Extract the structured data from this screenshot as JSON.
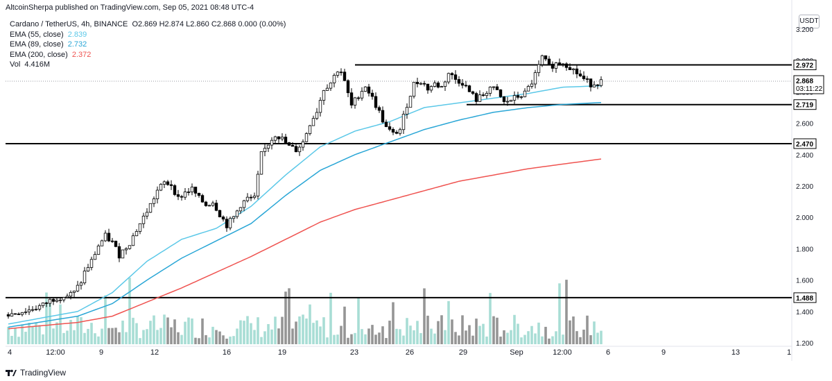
{
  "header": {
    "published_by": "AltcoinSherpa published on TradingView.com, Sep 05, 2021 08:48 UTC-4"
  },
  "legend": {
    "symbol": "Cardano / TetherUS, 4h, BINANCE",
    "ohlc": "O2.869  H2.874  L2.860  C2.868  0.000 (0.00%)",
    "ema55": {
      "label": "EMA (55, close)",
      "value": "2.839",
      "color": "#5bc8e8"
    },
    "ema89": {
      "label": "EMA (89, close)",
      "value": "2.732",
      "color": "#29a6d6"
    },
    "ema200": {
      "label": "EMA (200, close)",
      "value": "2.372",
      "color": "#ef5350"
    },
    "vol": {
      "label": "Vol",
      "value": "4.416M"
    }
  },
  "currency": "USDT",
  "footer": {
    "brand": "TradingView"
  },
  "chart_data": {
    "type": "candlestick",
    "ylim": [
      1.2,
      3.2
    ],
    "y_ticks": [
      "3.200",
      "3.000",
      "2.800",
      "2.600",
      "2.400",
      "2.200",
      "2.000",
      "1.800",
      "1.600",
      "1.400",
      "1.200"
    ],
    "x_ticks": [
      "4",
      "12:00",
      "9",
      "12",
      "16",
      "19",
      "23",
      "26",
      "29",
      "Sep",
      "12:00",
      "6",
      "9",
      "13",
      "1"
    ],
    "horizontal_levels": [
      {
        "price": 2.972,
        "label": "2.972",
        "from": "Aug 23"
      },
      {
        "price": 2.719,
        "label": "2.719",
        "from": "Aug 29"
      },
      {
        "price": 2.47,
        "label": "2.470",
        "from": "Aug 4"
      },
      {
        "price": 1.488,
        "label": "1.488",
        "from": "Aug 4"
      }
    ],
    "last_price": {
      "value": "2.868",
      "countdown": "03:11:22"
    },
    "price_path": [
      [
        0,
        1.38
      ],
      [
        6,
        1.41
      ],
      [
        10,
        1.44
      ],
      [
        12,
        1.47
      ],
      [
        14,
        1.49
      ],
      [
        17,
        1.5
      ],
      [
        19,
        1.52
      ],
      [
        21,
        1.59
      ],
      [
        22,
        1.65
      ],
      [
        24,
        1.72
      ],
      [
        26,
        1.82
      ],
      [
        28,
        1.88
      ],
      [
        30,
        1.84
      ],
      [
        32,
        1.76
      ],
      [
        35,
        1.84
      ],
      [
        37,
        1.92
      ],
      [
        39,
        2.0
      ],
      [
        41,
        2.08
      ],
      [
        43,
        2.17
      ],
      [
        45,
        2.22
      ],
      [
        47,
        2.21
      ],
      [
        49,
        2.12
      ],
      [
        51,
        2.16
      ],
      [
        53,
        2.18
      ],
      [
        55,
        2.12
      ],
      [
        57,
        2.08
      ],
      [
        59,
        2.1
      ],
      [
        61,
        2.02
      ],
      [
        63,
        1.95
      ],
      [
        65,
        2.0
      ],
      [
        67,
        2.08
      ],
      [
        69,
        2.12
      ],
      [
        71,
        2.12
      ],
      [
        73,
        2.4
      ],
      [
        75,
        2.47
      ],
      [
        77,
        2.53
      ],
      [
        79,
        2.5
      ],
      [
        81,
        2.45
      ],
      [
        83,
        2.43
      ],
      [
        85,
        2.48
      ],
      [
        87,
        2.6
      ],
      [
        89,
        2.68
      ],
      [
        91,
        2.82
      ],
      [
        93,
        2.86
      ],
      [
        95,
        2.94
      ],
      [
        96,
        2.93
      ],
      [
        97,
        2.86
      ],
      [
        99,
        2.71
      ],
      [
        101,
        2.78
      ],
      [
        103,
        2.84
      ],
      [
        105,
        2.76
      ],
      [
        107,
        2.67
      ],
      [
        109,
        2.57
      ],
      [
        111,
        2.53
      ],
      [
        113,
        2.56
      ],
      [
        115,
        2.72
      ],
      [
        117,
        2.85
      ],
      [
        119,
        2.87
      ],
      [
        121,
        2.82
      ],
      [
        123,
        2.85
      ],
      [
        125,
        2.83
      ],
      [
        127,
        2.92
      ],
      [
        129,
        2.88
      ],
      [
        131,
        2.86
      ],
      [
        133,
        2.8
      ],
      [
        135,
        2.75
      ],
      [
        137,
        2.78
      ],
      [
        139,
        2.83
      ],
      [
        141,
        2.8
      ],
      [
        143,
        2.73
      ],
      [
        145,
        2.75
      ],
      [
        147,
        2.77
      ],
      [
        149,
        2.79
      ],
      [
        151,
        2.86
      ],
      [
        153,
        2.96
      ],
      [
        154,
        3.02
      ],
      [
        156,
        2.96
      ],
      [
        158,
        2.98
      ],
      [
        160,
        2.99
      ],
      [
        162,
        2.96
      ],
      [
        164,
        2.92
      ],
      [
        166,
        2.88
      ],
      [
        168,
        2.85
      ],
      [
        170,
        2.86
      ],
      [
        171,
        2.868
      ]
    ],
    "ema55": [
      [
        0,
        1.32
      ],
      [
        20,
        1.4
      ],
      [
        30,
        1.52
      ],
      [
        40,
        1.72
      ],
      [
        50,
        1.86
      ],
      [
        60,
        1.93
      ],
      [
        70,
        2.07
      ],
      [
        80,
        2.27
      ],
      [
        90,
        2.45
      ],
      [
        100,
        2.55
      ],
      [
        110,
        2.61
      ],
      [
        120,
        2.7
      ],
      [
        130,
        2.73
      ],
      [
        140,
        2.76
      ],
      [
        150,
        2.79
      ],
      [
        160,
        2.83
      ],
      [
        171,
        2.839
      ]
    ],
    "ema89": [
      [
        0,
        1.3
      ],
      [
        20,
        1.37
      ],
      [
        30,
        1.45
      ],
      [
        40,
        1.6
      ],
      [
        50,
        1.74
      ],
      [
        60,
        1.85
      ],
      [
        70,
        1.96
      ],
      [
        80,
        2.14
      ],
      [
        90,
        2.3
      ],
      [
        100,
        2.4
      ],
      [
        110,
        2.48
      ],
      [
        120,
        2.56
      ],
      [
        130,
        2.62
      ],
      [
        140,
        2.67
      ],
      [
        150,
        2.7
      ],
      [
        160,
        2.72
      ],
      [
        171,
        2.732
      ]
    ],
    "ema200": [
      [
        0,
        1.29
      ],
      [
        20,
        1.33
      ],
      [
        30,
        1.37
      ],
      [
        40,
        1.46
      ],
      [
        50,
        1.55
      ],
      [
        60,
        1.65
      ],
      [
        70,
        1.75
      ],
      [
        80,
        1.86
      ],
      [
        90,
        1.97
      ],
      [
        100,
        2.05
      ],
      [
        110,
        2.11
      ],
      [
        120,
        2.17
      ],
      [
        130,
        2.23
      ],
      [
        140,
        2.27
      ],
      [
        150,
        2.31
      ],
      [
        160,
        2.34
      ],
      [
        171,
        2.372
      ]
    ]
  }
}
